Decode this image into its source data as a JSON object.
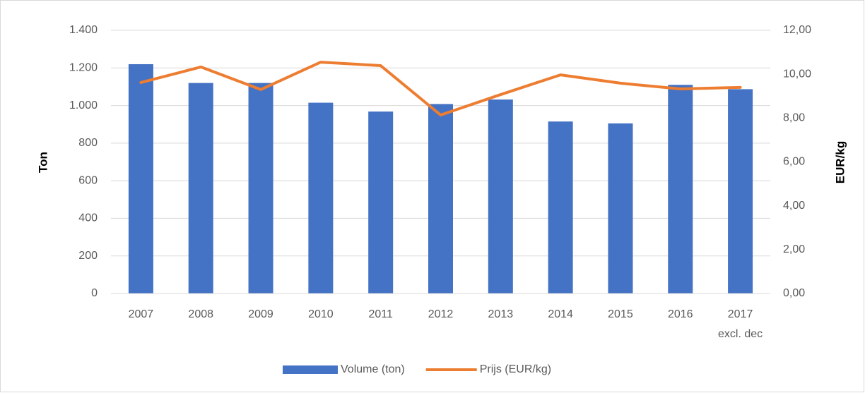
{
  "chart_data": {
    "type": "bar-line",
    "categories": [
      "2007",
      "2008",
      "2009",
      "2010",
      "2011",
      "2012",
      "2013",
      "2014",
      "2015",
      "2016",
      "2017\nexcl. dec"
    ],
    "series": [
      {
        "name": "Volume (ton)",
        "type": "bar",
        "color": "#4472c4",
        "values": [
          1220,
          1120,
          1120,
          1015,
          968,
          1008,
          1032,
          915,
          905,
          1110,
          1087
        ]
      },
      {
        "name": "Prijs (EUR/kg)",
        "type": "line",
        "axis": "y2",
        "color": "#ed7d31",
        "values": [
          9.62,
          10.33,
          9.3,
          10.55,
          10.39,
          8.14,
          9.07,
          9.97,
          9.59,
          9.33,
          9.4
        ]
      }
    ],
    "ylabel": "Ton",
    "y2label": "EUR/kg",
    "ylim": [
      0,
      1400
    ],
    "yticks": [
      0,
      200,
      400,
      600,
      800,
      {
        "value": 1000,
        "label": "1.000"
      },
      {
        "value": 1200,
        "label": "1.200"
      },
      {
        "value": 1400,
        "label": "1.400"
      }
    ],
    "y2lim": [
      0,
      12
    ],
    "y2ticks": [
      {
        "value": 0,
        "label": "0,00"
      },
      {
        "value": 2,
        "label": "2,00"
      },
      {
        "value": 4,
        "label": "4,00"
      },
      {
        "value": 6,
        "label": "6,00"
      },
      {
        "value": 8,
        "label": "8,00"
      },
      {
        "value": 10,
        "label": "10,00"
      },
      {
        "value": 12,
        "label": "12,00"
      }
    ],
    "grid": true,
    "legend": "bottom"
  }
}
